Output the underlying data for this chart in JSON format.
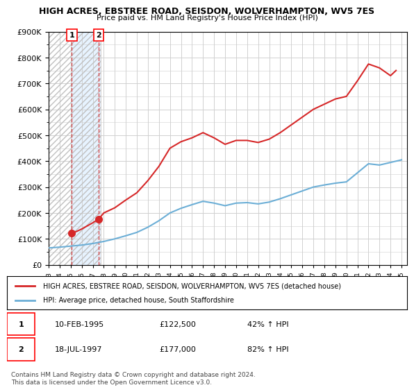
{
  "title": "HIGH ACRES, EBSTREE ROAD, SEISDON, WOLVERHAMPTON, WV5 7ES",
  "subtitle": "Price paid vs. HM Land Registry's House Price Index (HPI)",
  "ylabel_ticks": [
    "£0",
    "£100K",
    "£200K",
    "£300K",
    "£400K",
    "£500K",
    "£600K",
    "£700K",
    "£800K",
    "£900K"
  ],
  "ylim": [
    0,
    900000
  ],
  "xlim_start": 1993.0,
  "xlim_end": 2025.5,
  "hpi_color": "#6baed6",
  "price_color": "#d62728",
  "marker1_x": 1995.1,
  "marker1_y": 122500,
  "marker2_x": 1997.55,
  "marker2_y": 177000,
  "legend_line1": "HIGH ACRES, EBSTREE ROAD, SEISDON, WOLVERHAMPTON, WV5 7ES (detached house)",
  "legend_line2": "HPI: Average price, detached house, South Staffordshire",
  "table_row1_num": "1",
  "table_row1_date": "10-FEB-1995",
  "table_row1_price": "£122,500",
  "table_row1_hpi": "42% ↑ HPI",
  "table_row2_num": "2",
  "table_row2_date": "18-JUL-1997",
  "table_row2_price": "£177,000",
  "table_row2_hpi": "82% ↑ HPI",
  "copyright_text": "Contains HM Land Registry data © Crown copyright and database right 2024.\nThis data is licensed under the Open Government Licence v3.0.",
  "hatch_color": "#c0c0c0",
  "shaded_region_end": 1997.7,
  "background_plot": "#ffffff",
  "grid_color": "#d0d0d0"
}
